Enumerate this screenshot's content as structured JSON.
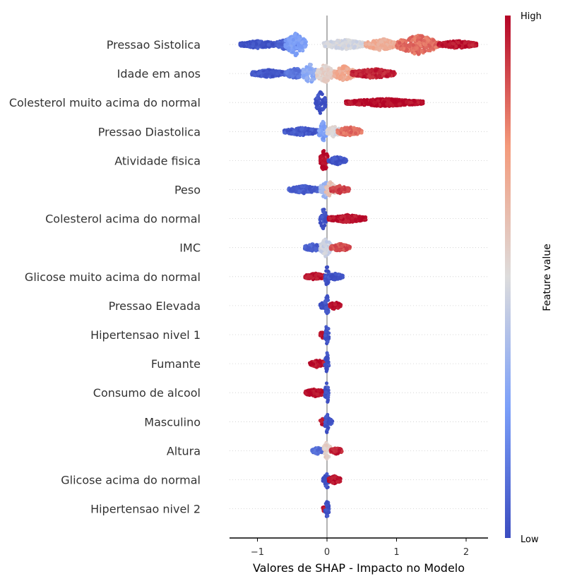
{
  "chart_data": {
    "type": "scatter",
    "subtype": "shap-beeswarm",
    "xlabel": "Valores de SHAP - Impacto no Modelo",
    "xlim": [
      -1.4,
      2.28
    ],
    "xticks": [
      "−1",
      "0",
      "1",
      "2"
    ],
    "xtick_values": [
      -1,
      0,
      1,
      2
    ],
    "colorbar": {
      "label": "Feature value",
      "high_label": "High",
      "low_label": "Low",
      "colormap": "coolwarm",
      "low_color": "#3b4cc0",
      "mid_color": "#dddcdc",
      "high_color": "#b40426"
    },
    "grid": "dotted horizontal row lines",
    "zero_line_color": "#999999",
    "features": [
      {
        "name": "Pressao Sistolica",
        "clusters": [
          {
            "from": -1.25,
            "to": -0.72,
            "v": 0.02,
            "w": 0.35
          },
          {
            "from": -0.72,
            "to": -0.35,
            "v": 0.08,
            "w": 0.6
          },
          {
            "from": -0.6,
            "to": -0.3,
            "v": 0.25,
            "w": 1.0
          },
          {
            "from": -0.05,
            "to": 0.55,
            "v": 0.48,
            "w": 0.45
          },
          {
            "from": 0.55,
            "to": 1.0,
            "v": 0.68,
            "w": 0.55
          },
          {
            "from": 1.0,
            "to": 1.6,
            "v": 0.82,
            "w": 0.9
          },
          {
            "from": 1.6,
            "to": 2.15,
            "v": 0.97,
            "w": 0.35
          }
        ]
      },
      {
        "name": "Idade em anos",
        "clusters": [
          {
            "from": -1.08,
            "to": -0.6,
            "v": 0.03,
            "w": 0.35
          },
          {
            "from": -0.6,
            "to": -0.3,
            "v": 0.12,
            "w": 0.5
          },
          {
            "from": -0.35,
            "to": -0.15,
            "v": 0.3,
            "w": 0.9
          },
          {
            "from": -0.15,
            "to": 0.1,
            "v": 0.55,
            "w": 0.85
          },
          {
            "from": 0.1,
            "to": 0.4,
            "v": 0.7,
            "w": 0.7
          },
          {
            "from": 0.35,
            "to": 0.98,
            "v": 0.95,
            "w": 0.45
          }
        ]
      },
      {
        "name": "Colesterol muito acima do normal",
        "clusters": [
          {
            "from": -0.17,
            "to": -0.02,
            "v": 0.02,
            "w": 1.0
          },
          {
            "from": 0.27,
            "to": 1.38,
            "v": 0.99,
            "w": 0.35
          }
        ]
      },
      {
        "name": "Pressao Diastolica",
        "clusters": [
          {
            "from": -0.62,
            "to": -0.1,
            "v": 0.04,
            "w": 0.35
          },
          {
            "from": -0.12,
            "to": 0.0,
            "v": 0.25,
            "w": 1.0
          },
          {
            "from": 0.0,
            "to": 0.2,
            "v": 0.5,
            "w": 0.5
          },
          {
            "from": 0.15,
            "to": 0.5,
            "v": 0.82,
            "w": 0.45
          }
        ]
      },
      {
        "name": "Atividade fisica",
        "clusters": [
          {
            "from": -0.1,
            "to": 0.02,
            "v": 0.99,
            "w": 1.0
          },
          {
            "from": 0.02,
            "to": 0.28,
            "v": 0.02,
            "w": 0.35
          }
        ]
      },
      {
        "name": "Peso",
        "clusters": [
          {
            "from": -0.55,
            "to": -0.1,
            "v": 0.05,
            "w": 0.35
          },
          {
            "from": -0.1,
            "to": 0.05,
            "v": 0.35,
            "w": 0.8
          },
          {
            "from": -0.02,
            "to": 0.12,
            "v": 0.6,
            "w": 0.7
          },
          {
            "from": 0.05,
            "to": 0.32,
            "v": 0.9,
            "w": 0.35
          }
        ]
      },
      {
        "name": "Colesterol acima do normal",
        "clusters": [
          {
            "from": -0.1,
            "to": 0.0,
            "v": 0.02,
            "w": 1.0
          },
          {
            "from": 0.02,
            "to": 0.56,
            "v": 0.98,
            "w": 0.35
          }
        ]
      },
      {
        "name": "IMC",
        "clusters": [
          {
            "from": -0.32,
            "to": -0.08,
            "v": 0.06,
            "w": 0.35
          },
          {
            "from": -0.1,
            "to": 0.06,
            "v": 0.45,
            "w": 0.8
          },
          {
            "from": 0.05,
            "to": 0.33,
            "v": 0.88,
            "w": 0.35
          }
        ]
      },
      {
        "name": "Glicose muito acima do normal",
        "clusters": [
          {
            "from": -0.32,
            "to": -0.02,
            "v": 0.98,
            "w": 0.3
          },
          {
            "from": -0.03,
            "to": 0.03,
            "v": 0.02,
            "w": 1.0
          },
          {
            "from": 0.02,
            "to": 0.23,
            "v": 0.02,
            "w": 0.3
          }
        ]
      },
      {
        "name": "Pressao Elevada",
        "clusters": [
          {
            "from": -0.1,
            "to": -0.03,
            "v": 0.02,
            "w": 0.3
          },
          {
            "from": -0.03,
            "to": 0.03,
            "v": 0.02,
            "w": 1.0
          },
          {
            "from": 0.03,
            "to": 0.2,
            "v": 0.98,
            "w": 0.35
          }
        ]
      },
      {
        "name": "Hipertensao nivel 1",
        "clusters": [
          {
            "from": -0.1,
            "to": -0.02,
            "v": 0.98,
            "w": 0.35
          },
          {
            "from": -0.03,
            "to": 0.03,
            "v": 0.02,
            "w": 1.0
          }
        ]
      },
      {
        "name": "Fumante",
        "clusters": [
          {
            "from": -0.25,
            "to": -0.02,
            "v": 0.98,
            "w": 0.35
          },
          {
            "from": -0.03,
            "to": 0.03,
            "v": 0.02,
            "w": 1.0
          }
        ]
      },
      {
        "name": "Consumo de alcool",
        "clusters": [
          {
            "from": -0.32,
            "to": -0.02,
            "v": 0.98,
            "w": 0.35
          },
          {
            "from": -0.03,
            "to": 0.03,
            "v": 0.02,
            "w": 1.0
          }
        ]
      },
      {
        "name": "Masculino",
        "clusters": [
          {
            "from": -0.1,
            "to": -0.02,
            "v": 0.98,
            "w": 0.35
          },
          {
            "from": -0.03,
            "to": 0.03,
            "v": 0.02,
            "w": 1.0
          },
          {
            "from": 0.02,
            "to": 0.08,
            "v": 0.02,
            "w": 0.25
          }
        ]
      },
      {
        "name": "Altura",
        "clusters": [
          {
            "from": -0.22,
            "to": -0.05,
            "v": 0.1,
            "w": 0.3
          },
          {
            "from": -0.05,
            "to": 0.05,
            "v": 0.55,
            "w": 1.0
          },
          {
            "from": 0.05,
            "to": 0.22,
            "v": 0.95,
            "w": 0.3
          }
        ]
      },
      {
        "name": "Glicose acima do normal",
        "clusters": [
          {
            "from": -0.06,
            "to": -0.02,
            "v": 0.02,
            "w": 0.3
          },
          {
            "from": -0.03,
            "to": 0.03,
            "v": 0.02,
            "w": 1.0
          },
          {
            "from": 0.02,
            "to": 0.2,
            "v": 0.98,
            "w": 0.35
          }
        ]
      },
      {
        "name": "Hipertensao nivel 2",
        "clusters": [
          {
            "from": -0.06,
            "to": -0.02,
            "v": 0.98,
            "w": 0.3
          },
          {
            "from": -0.03,
            "to": 0.03,
            "v": 0.02,
            "w": 1.0
          }
        ]
      }
    ]
  }
}
